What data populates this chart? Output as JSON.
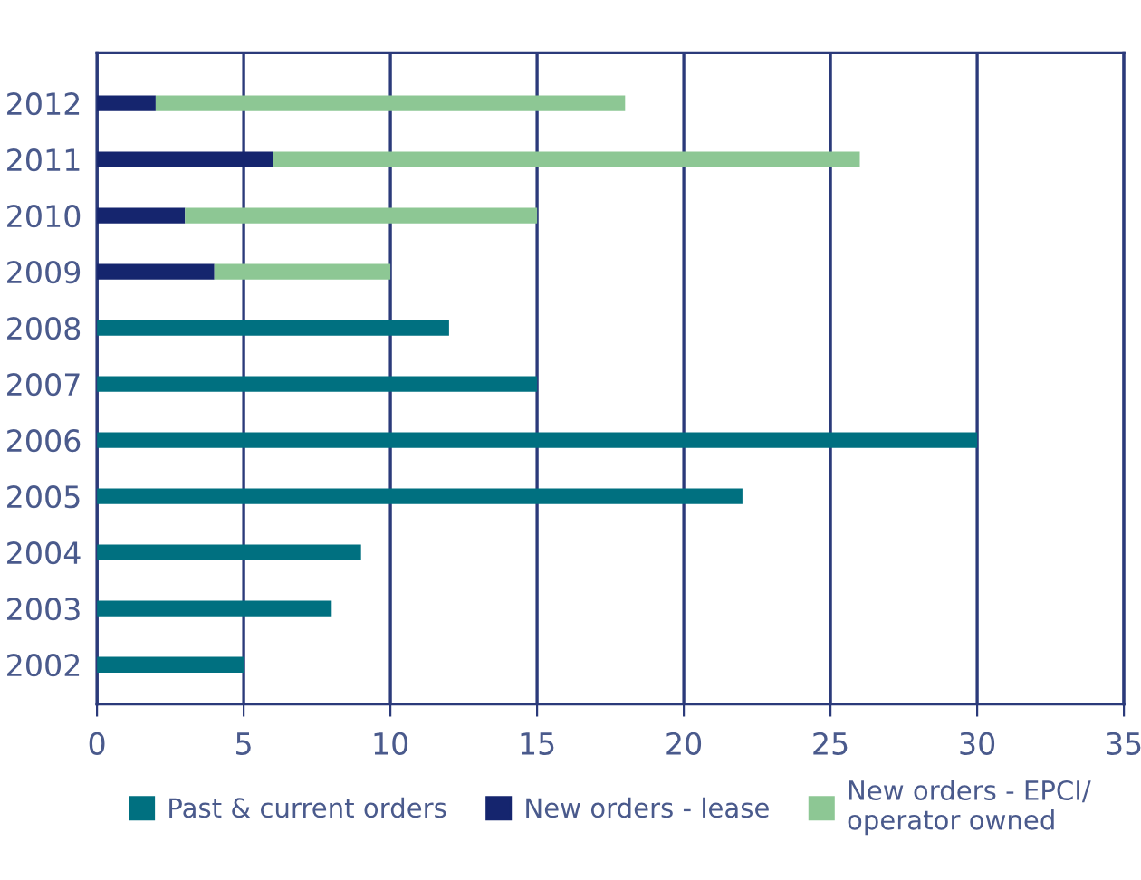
{
  "chart_data": {
    "type": "bar",
    "orientation": "horizontal",
    "stacked": true,
    "categories": [
      "2012",
      "2011",
      "2010",
      "2009",
      "2008",
      "2007",
      "2006",
      "2005",
      "2004",
      "2003",
      "2002"
    ],
    "series": [
      {
        "name": "Past & current orders",
        "color": "#007080",
        "values": [
          null,
          null,
          null,
          null,
          12,
          15,
          30,
          22,
          9,
          8,
          5
        ]
      },
      {
        "name": "New orders - lease",
        "color": "#15256e",
        "values": [
          2,
          6,
          3,
          4,
          null,
          null,
          null,
          null,
          null,
          null,
          null
        ]
      },
      {
        "name": "New orders - EPCI/\noperator owned",
        "color": "#8dc794",
        "values": [
          16,
          20,
          12,
          6,
          null,
          null,
          null,
          null,
          null,
          null,
          null
        ]
      }
    ],
    "xlim": [
      0,
      35
    ],
    "xticks": [
      0,
      5,
      10,
      15,
      20,
      25,
      30,
      35
    ],
    "grid": "x",
    "legend": "bottom"
  }
}
